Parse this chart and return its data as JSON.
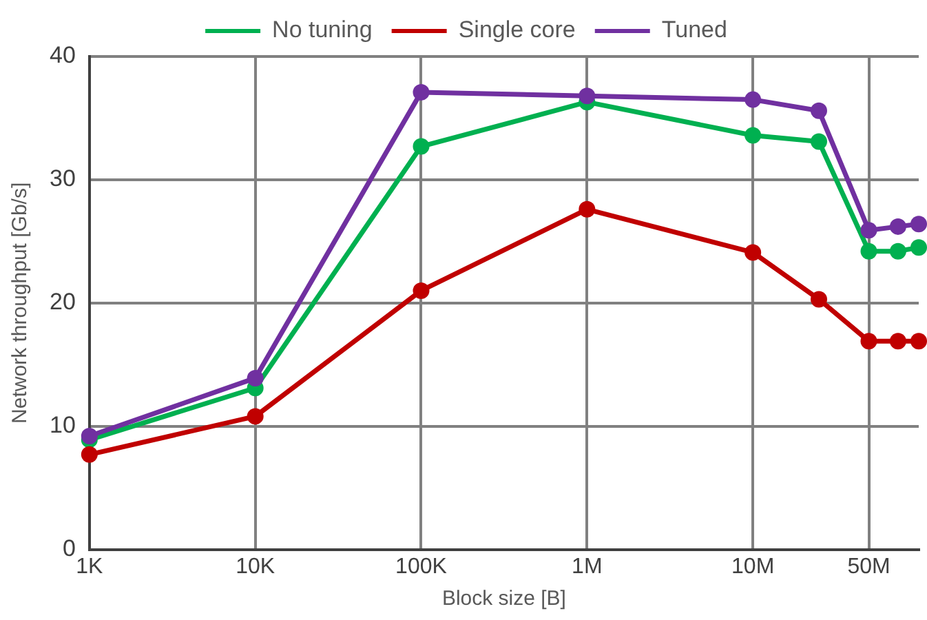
{
  "chart_data": {
    "type": "line",
    "xlabel": "Block size [B]",
    "ylabel": "Network throughput [Gb/s]",
    "x": [
      1000,
      10000,
      100000,
      1000000,
      10000000,
      25000000,
      50000000,
      75000000,
      100000000
    ],
    "series": [
      {
        "name": "No tuning",
        "color": "#00b050",
        "values": [
          8.9,
          13.1,
          32.7,
          36.3,
          33.6,
          33.1,
          24.2,
          24.2,
          24.5
        ]
      },
      {
        "name": "Single core",
        "color": "#c00000",
        "values": [
          7.7,
          10.8,
          21.0,
          27.6,
          24.1,
          20.3,
          16.9,
          16.9,
          16.9
        ]
      },
      {
        "name": "Tuned",
        "color": "#7030a0",
        "values": [
          9.2,
          13.9,
          37.1,
          36.8,
          36.5,
          35.6,
          25.9,
          26.2,
          26.4
        ]
      }
    ],
    "log": "x",
    "xlim": [
      1000,
      100000000
    ],
    "xticks": [
      {
        "value": 1000,
        "label": "1K"
      },
      {
        "value": 10000,
        "label": "10K"
      },
      {
        "value": 100000,
        "label": "100K"
      },
      {
        "value": 1000000,
        "label": "1M"
      },
      {
        "value": 10000000,
        "label": "10M"
      },
      {
        "value": 50000000,
        "label": "50M"
      }
    ],
    "ylim": [
      0,
      40
    ],
    "yticks": [
      0,
      10,
      20,
      30,
      40
    ],
    "grid": true,
    "legend": "top",
    "marker": "circle",
    "line_style": "solid"
  }
}
